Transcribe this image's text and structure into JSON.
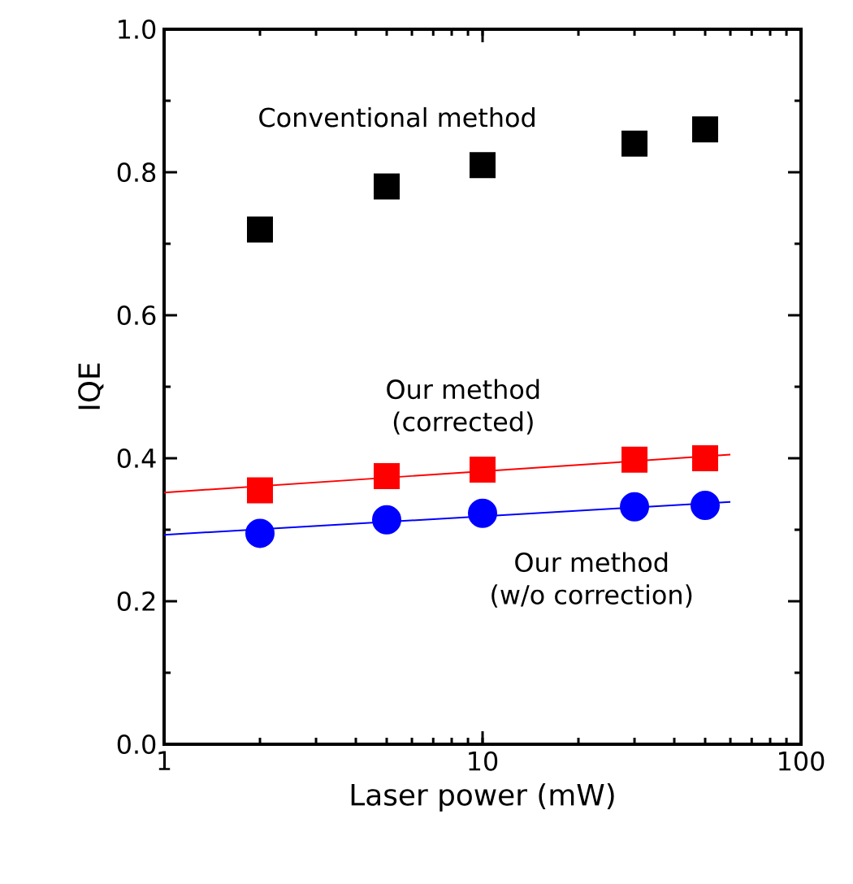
{
  "chart_data": {
    "type": "scatter",
    "xlabel": "Laser power (mW)",
    "ylabel": "IQE",
    "log": "x",
    "xlim": [
      1,
      100
    ],
    "xticks": [
      1,
      10,
      100
    ],
    "ylim": [
      0,
      1
    ],
    "yticks": [
      {
        "value": 0,
        "label": "0.0"
      },
      {
        "value": 0.2,
        "label": "0.2"
      },
      {
        "value": 0.4,
        "label": "0.4"
      },
      {
        "value": 0.6,
        "label": "0.6"
      },
      {
        "value": 0.8,
        "label": "0.8"
      },
      {
        "value": 1,
        "label": "1.0"
      }
    ],
    "grid": false,
    "legend": false,
    "series": [
      {
        "name": "Conventional method",
        "color": "#000000",
        "marker": "square",
        "x": [
          2,
          5,
          10,
          30,
          50
        ],
        "values": [
          0.72,
          0.78,
          0.81,
          0.84,
          0.86
        ]
      },
      {
        "name": "Our method\n(corrected)",
        "color": "#ff0000",
        "marker": "square",
        "x": [
          2,
          5,
          10,
          30,
          50
        ],
        "values": [
          0.355,
          0.375,
          0.384,
          0.398,
          0.4
        ]
      },
      {
        "name": "Our method\n(w/o correction)",
        "color": "#0000ff",
        "marker": "circle",
        "x": [
          2,
          5,
          10,
          30,
          50
        ],
        "values": [
          0.295,
          0.314,
          0.323,
          0.332,
          0.334
        ]
      },
      {
        "type": "line",
        "color": "#ff0000",
        "marker": "none",
        "x": [
          1,
          60
        ],
        "values": [
          0.352,
          0.405
        ]
      },
      {
        "type": "line",
        "color": "#0000ff",
        "marker": "none",
        "x": [
          1,
          60
        ],
        "values": [
          0.293,
          0.339
        ]
      }
    ]
  }
}
